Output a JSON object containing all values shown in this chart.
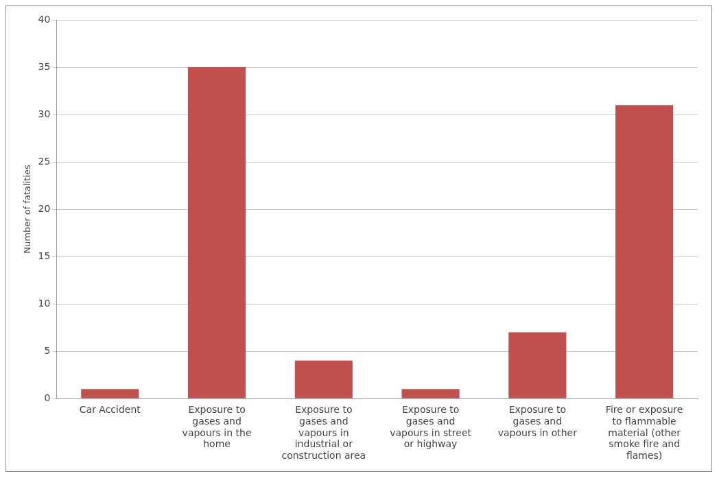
{
  "chart_data": {
    "type": "bar",
    "ylabel": "Number of fatalities",
    "categories": [
      "Car Accident",
      "Exposure to gases and vapours in the home",
      "Exposure to gases and vapours in industrial or construction area",
      "Exposure to gases and vapours in street or highway",
      "Exposure to gases and vapours in other",
      "Fire or exposure to flammable material (other smoke fire and flames)"
    ],
    "values": [
      1,
      35,
      4,
      1,
      7,
      31
    ],
    "color": "#c0504d",
    "ylim": [
      0,
      40
    ],
    "yticks": [
      0,
      5,
      10,
      15,
      20,
      25,
      30,
      35,
      40
    ],
    "grid": "y",
    "legend": false
  }
}
